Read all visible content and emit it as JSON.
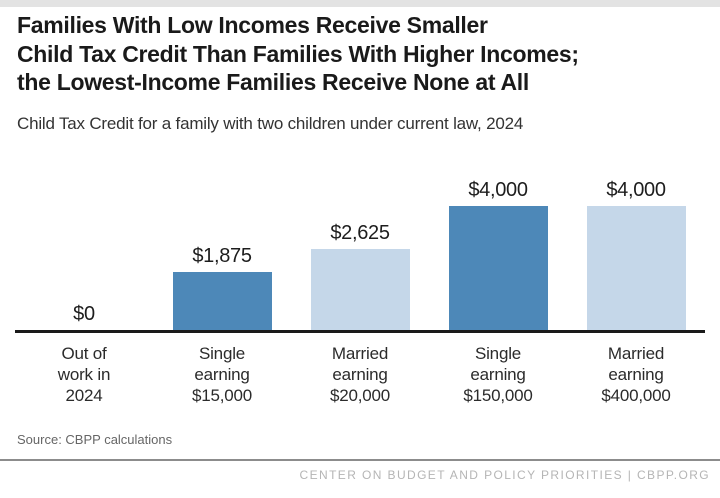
{
  "header": {
    "title_lines": [
      "Families With Low Incomes Receive Smaller",
      "Child Tax Credit Than Families With Higher Incomes;",
      "the Lowest-Income Families Receive None at All"
    ],
    "subtitle": "Child Tax Credit for a family with two children under current law, 2024"
  },
  "chart_data": {
    "type": "bar",
    "title": "Families With Low Incomes Receive Smaller Child Tax Credit Than Families With Higher Incomes; the Lowest-Income Families Receive None at All",
    "subtitle": "Child Tax Credit for a family with two children under current law, 2024",
    "categories": [
      "Out of\nwork in\n2024",
      "Single\nearning\n$15,000",
      "Married\nearning\n$20,000",
      "Single\nearning\n$150,000",
      "Married\nearning\n$400,000"
    ],
    "values": [
      0,
      1875,
      2625,
      4000,
      4000
    ],
    "value_labels": [
      "$0",
      "$1,875",
      "$2,625",
      "$4,000",
      "$4,000"
    ],
    "bar_colors": [
      null,
      "#4d88b8",
      "#c5d7e9",
      "#4d88b8",
      "#c5d7e9"
    ],
    "xlabel": "",
    "ylabel": "",
    "ylim": [
      0,
      4000
    ],
    "grid": false,
    "legend": false
  },
  "colors": {
    "dark_blue": "#4d88b8",
    "light_blue": "#c5d7e9",
    "axis": "#1a1a1a",
    "top_strip": "#e3e3e3",
    "divider": "#8c8c8c",
    "footer_text": "#b5b5b5"
  },
  "footer": {
    "source": "Source: CBPP calculations",
    "org_line": "CENTER ON BUDGET AND POLICY PRIORITIES | CBPP.ORG"
  }
}
